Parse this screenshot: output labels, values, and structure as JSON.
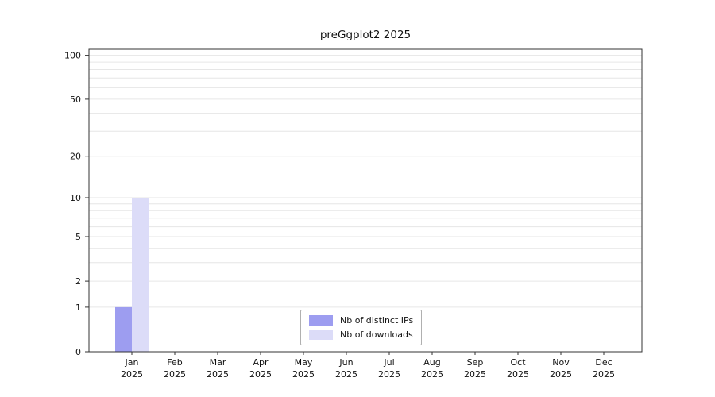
{
  "chart_data": {
    "type": "bar",
    "title": "preGgplot2 2025",
    "categories": [
      {
        "month": "Jan",
        "year": "2025"
      },
      {
        "month": "Feb",
        "year": "2025"
      },
      {
        "month": "Mar",
        "year": "2025"
      },
      {
        "month": "Apr",
        "year": "2025"
      },
      {
        "month": "May",
        "year": "2025"
      },
      {
        "month": "Jun",
        "year": "2025"
      },
      {
        "month": "Jul",
        "year": "2025"
      },
      {
        "month": "Aug",
        "year": "2025"
      },
      {
        "month": "Sep",
        "year": "2025"
      },
      {
        "month": "Oct",
        "year": "2025"
      },
      {
        "month": "Nov",
        "year": "2025"
      },
      {
        "month": "Dec",
        "year": "2025"
      }
    ],
    "series": [
      {
        "name": "Nb of distinct IPs",
        "key": "distinct-ips",
        "color": "#9d9df0",
        "values": [
          1,
          0,
          0,
          0,
          0,
          0,
          0,
          0,
          0,
          0,
          0,
          0
        ]
      },
      {
        "name": "Nb of downloads",
        "key": "downloads",
        "color": "#dcdcf8",
        "values": [
          10,
          0,
          0,
          0,
          0,
          0,
          0,
          0,
          0,
          0,
          0,
          0
        ]
      }
    ],
    "y_ticks": [
      0,
      1,
      2,
      5,
      10,
      20,
      50,
      100
    ],
    "scale": "log1p",
    "ylim": [
      0,
      110
    ],
    "xlabel": "",
    "ylabel": "",
    "grid": true,
    "legend_position": "bottom-center"
  }
}
